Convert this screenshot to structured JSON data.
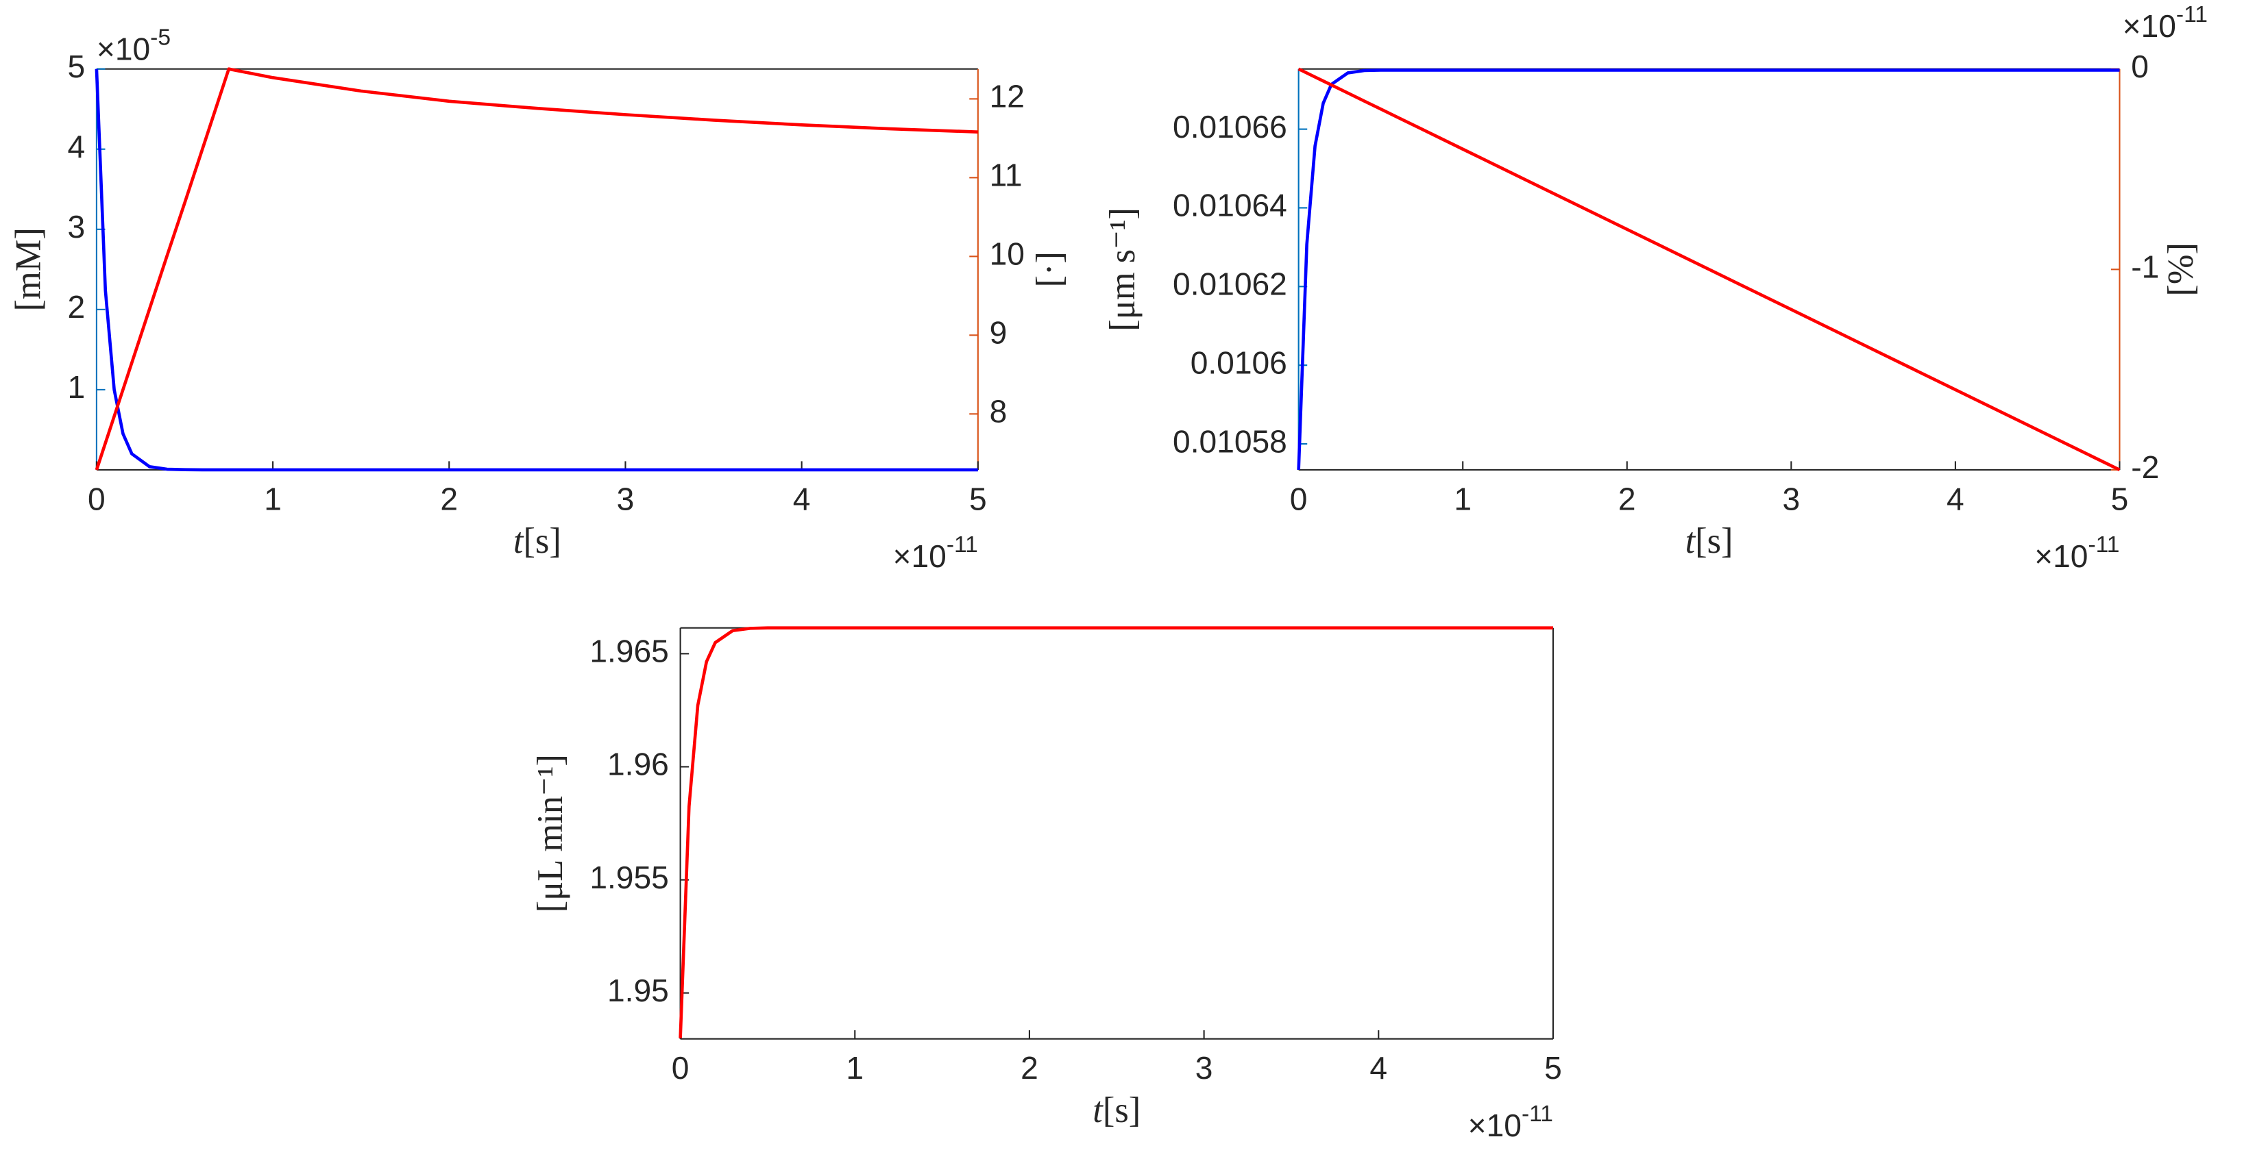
{
  "chart_data": [
    {
      "type": "line",
      "x": [
        0,
        0.05,
        0.1,
        0.15,
        0.2,
        0.3,
        0.4,
        0.5,
        0.6,
        0.75,
        1,
        1.5,
        2,
        2.5,
        3,
        3.5,
        4,
        4.5,
        5
      ],
      "xlim": [
        0,
        5
      ],
      "xticks": [
        0,
        1,
        2,
        3,
        4,
        5
      ],
      "x_multiplier": {
        "base": "×10",
        "exponent": "-11"
      },
      "xlabel": {
        "symbol": "t",
        "unit": "[s]"
      },
      "ylabel": "[mM]",
      "ycolor": "#0072BD",
      "ylim": [
        0,
        5
      ],
      "yticks": [
        1,
        2,
        3,
        4,
        5
      ],
      "y_multiplier": {
        "base": "×10",
        "exponent": "-5"
      },
      "y2label": "[·]",
      "y2color": "#D95319",
      "y2lim": [
        7.29,
        12.38
      ],
      "y2ticks": [
        8,
        9,
        10,
        11,
        12
      ],
      "series": [
        {
          "color": "#0000ff",
          "values": [
            5,
            2.24,
            1.0,
            0.45,
            0.2,
            0.04,
            0.008,
            0.002,
            0,
            0,
            0,
            0,
            0,
            0,
            0,
            0,
            0,
            0,
            0
          ]
        },
        {
          "color": "#ff0000",
          "axis": "y2",
          "values": [
            7.29,
            7.63,
            7.97,
            8.31,
            8.65,
            9.33,
            10.01,
            10.68,
            11.36,
            12.38,
            12.27,
            12.1,
            11.97,
            11.88,
            11.8,
            11.73,
            11.67,
            11.62,
            11.58
          ]
        }
      ]
    },
    {
      "type": "line",
      "x": [
        0,
        0.05,
        0.1,
        0.15,
        0.2,
        0.3,
        0.4,
        0.5,
        0.6,
        0.75,
        1,
        1.5,
        2,
        2.5,
        3,
        3.5,
        4,
        4.5,
        5
      ],
      "xlim": [
        0,
        5
      ],
      "xticks": [
        0,
        1,
        2,
        3,
        4,
        5
      ],
      "x_multiplier": {
        "base": "×10",
        "exponent": "-11"
      },
      "xlabel": {
        "symbol": "t",
        "unit": "[s]"
      },
      "ylabel": "[μm s⁻¹]",
      "ycolor": "#0072BD",
      "ylim": [
        0.0105734,
        0.0106753
      ],
      "yticks": [
        0.01058,
        0.0106,
        0.01062,
        0.01064,
        0.01066
      ],
      "y2label": "[%]",
      "y2color": "#D95319",
      "y2lim": [
        -2,
        0
      ],
      "y2ticks": [
        -2,
        -1,
        0
      ],
      "y2_multiplier": {
        "base": "×10",
        "exponent": "-11"
      },
      "series": [
        {
          "color": "#0000ff",
          "values": [
            0.0105734,
            0.0106307,
            0.0106557,
            0.0106666,
            0.0106714,
            0.0106743,
            0.0106749,
            0.010675,
            0.010675,
            0.010675,
            0.010675,
            0.010675,
            0.010675,
            0.010675,
            0.010675,
            0.010675,
            0.010675,
            0.010675,
            0.010675
          ]
        },
        {
          "color": "#ff0000",
          "axis": "y2",
          "values": [
            0,
            -0.02,
            -0.04,
            -0.06,
            -0.08,
            -0.12,
            -0.16,
            -0.2,
            -0.24,
            -0.3,
            -0.4,
            -0.6,
            -0.8,
            -1,
            -1.2,
            -1.4,
            -1.6,
            -1.8,
            -2
          ]
        }
      ]
    },
    {
      "type": "line",
      "x": [
        0,
        0.05,
        0.1,
        0.15,
        0.2,
        0.3,
        0.4,
        0.5,
        0.6,
        0.75,
        1,
        1.5,
        2,
        2.5,
        3,
        3.5,
        4,
        4.5,
        5
      ],
      "xlim": [
        0,
        5
      ],
      "xticks": [
        0,
        1,
        2,
        3,
        4,
        5
      ],
      "x_multiplier": {
        "base": "×10",
        "exponent": "-11"
      },
      "xlabel": {
        "symbol": "t",
        "unit": "[s]"
      },
      "ylabel": "[μL min⁻¹]",
      "ycolor": "#262626",
      "ylim": [
        1.94797,
        1.96614
      ],
      "yticks": [
        1.95,
        1.955,
        1.96,
        1.965
      ],
      "series": [
        {
          "color": "#ff0000",
          "values": [
            1.948,
            1.95825,
            1.96271,
            1.96465,
            1.96549,
            1.96602,
            1.96612,
            1.96614,
            1.96614,
            1.96614,
            1.96614,
            1.96614,
            1.96614,
            1.96614,
            1.96614,
            1.96614,
            1.96614,
            1.96614,
            1.96614
          ]
        }
      ]
    }
  ]
}
